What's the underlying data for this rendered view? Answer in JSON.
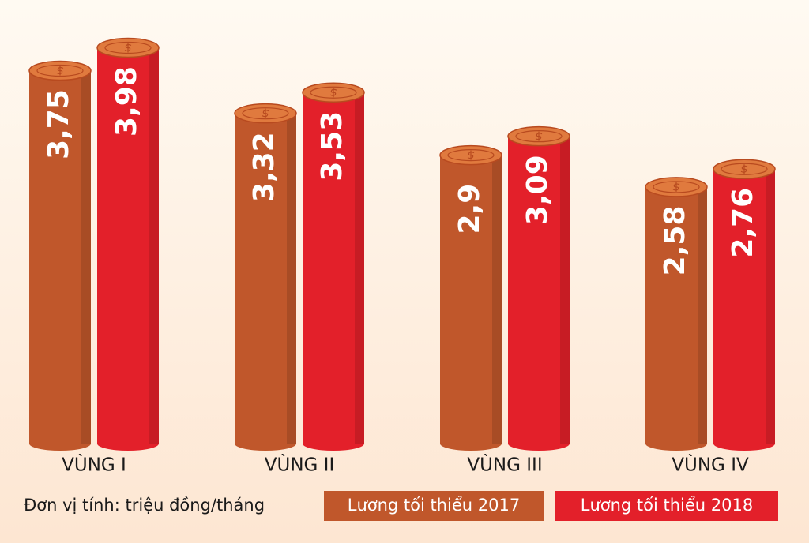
{
  "chart_data": {
    "type": "bar",
    "categories": [
      "VÙNG I",
      "VÙNG II",
      "VÙNG III",
      "VÙNG IV"
    ],
    "series": [
      {
        "name": "Lương tối thiểu 2017",
        "color": "#c0572b",
        "values": [
          3.75,
          3.32,
          2.9,
          2.58
        ],
        "value_labels": [
          "3,75",
          "3,32",
          "2,9",
          "2,58"
        ]
      },
      {
        "name": "Lương tối thiểu 2018",
        "color": "#e3202a",
        "values": [
          3.98,
          3.53,
          3.09,
          2.76
        ],
        "value_labels": [
          "3,98",
          "3,53",
          "3,09",
          "2,76"
        ]
      }
    ],
    "note": "Đơn vị tính: triệu đồng/tháng"
  }
}
